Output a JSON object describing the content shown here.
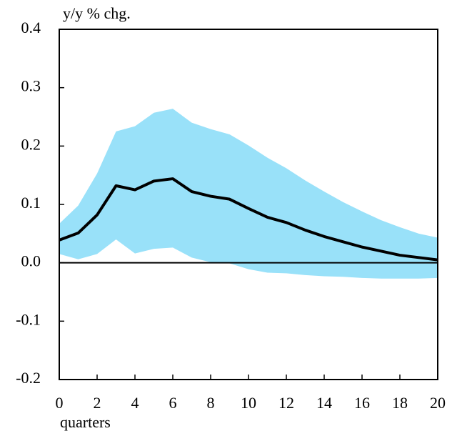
{
  "chart_data": {
    "type": "line",
    "y_label": "y/y % chg.",
    "x_label": "quarters",
    "x": [
      0,
      1,
      2,
      3,
      4,
      5,
      6,
      7,
      8,
      9,
      10,
      11,
      12,
      13,
      14,
      15,
      16,
      17,
      18,
      19,
      20
    ],
    "series": [
      {
        "color": "#000000",
        "values": [
          0.039,
          0.051,
          0.082,
          0.132,
          0.125,
          0.14,
          0.144,
          0.122,
          0.114,
          0.109,
          0.093,
          0.078,
          0.069,
          0.056,
          0.045,
          0.036,
          0.027,
          0.02,
          0.013,
          0.009,
          0.005
        ]
      }
    ],
    "band": {
      "color": "#99e1f9",
      "upper": [
        0.067,
        0.098,
        0.153,
        0.225,
        0.234,
        0.257,
        0.264,
        0.24,
        0.229,
        0.22,
        0.201,
        0.18,
        0.162,
        0.141,
        0.122,
        0.104,
        0.088,
        0.073,
        0.061,
        0.05,
        0.043
      ],
      "lower": [
        0.015,
        0.006,
        0.015,
        0.04,
        0.016,
        0.024,
        0.026,
        0.009,
        0.001,
        -0.001,
        -0.011,
        -0.017,
        -0.018,
        -0.021,
        -0.023,
        -0.024,
        -0.026,
        -0.027,
        -0.027,
        -0.027,
        -0.026
      ]
    },
    "xlim": [
      0,
      20
    ],
    "ylim": [
      -0.2,
      0.4
    ],
    "xticks": [
      0,
      2,
      4,
      6,
      8,
      10,
      12,
      14,
      16,
      18,
      20
    ],
    "yticks": [
      0.4,
      0.3,
      0.2,
      0.1,
      {
        "value": 0,
        "label": "0.0"
      },
      -0.1,
      -0.2
    ],
    "grid": false
  }
}
